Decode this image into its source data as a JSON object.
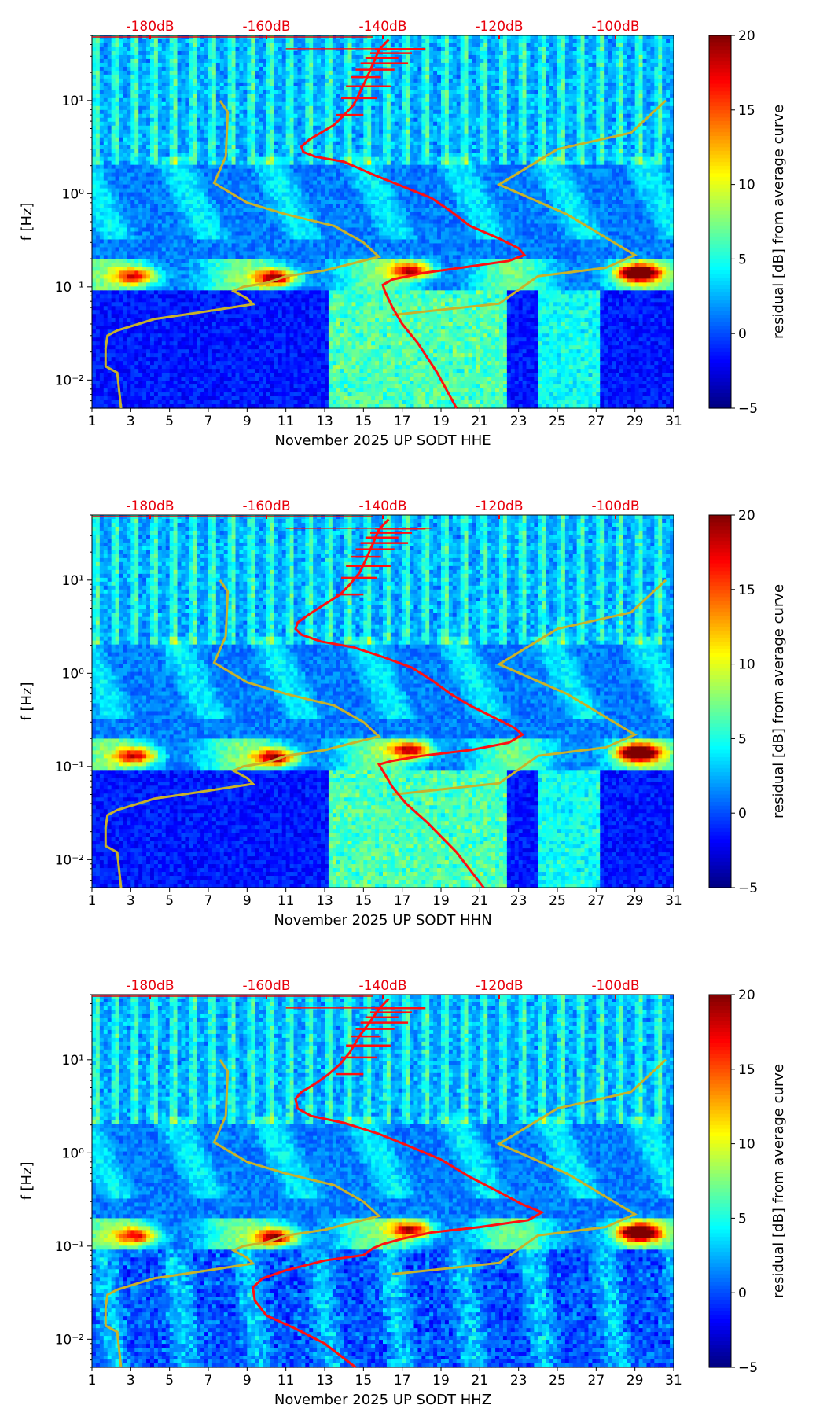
{
  "colors": {
    "db_axis": "#e8000b",
    "average_curve": "#ff1010",
    "noise_model": "#c8b22a",
    "colormap": [
      "#00007f",
      "#0000ff",
      "#007fff",
      "#00ffff",
      "#7fff7f",
      "#ffff00",
      "#ff7f00",
      "#ff0000",
      "#7f0000"
    ]
  },
  "chart_data": [
    {
      "type": "heatmap",
      "title": "",
      "xlabel": "November 2025 UP SODT  HHE",
      "ylabel": "f [Hz]",
      "x_ticks": [
        "1",
        "3",
        "5",
        "7",
        "9",
        "11",
        "13",
        "15",
        "17",
        "19",
        "21",
        "23",
        "25",
        "27",
        "29",
        "31"
      ],
      "xlim": [
        1,
        31
      ],
      "ylim": [
        0.005,
        50
      ],
      "y_scale": "log",
      "y_ticks": [
        "10⁻²",
        "10⁻¹",
        "10⁰",
        "10¹"
      ],
      "db_axis_ticks": [
        "-180dB",
        "-160dB",
        "-140dB",
        "-120dB",
        "-100dB"
      ],
      "colorbar": {
        "label": "residual [dB] from average curve",
        "range": [
          -5,
          20
        ],
        "ticks": [
          "20",
          "15",
          "10",
          "5",
          "0",
          "−5"
        ]
      },
      "average_psd_curve": [
        [
          16.3,
          45
        ],
        [
          15.8,
          35
        ],
        [
          15.5,
          25
        ],
        [
          15.2,
          18
        ],
        [
          14.8,
          12
        ],
        [
          14.5,
          9
        ],
        [
          14,
          7
        ],
        [
          13.5,
          5.5
        ],
        [
          12.8,
          4.5
        ],
        [
          12.2,
          3.8
        ],
        [
          11.8,
          3.2
        ],
        [
          11.9,
          2.8
        ],
        [
          12.5,
          2.5
        ],
        [
          14,
          2.2
        ],
        [
          15.5,
          1.6
        ],
        [
          17,
          1.2
        ],
        [
          18.5,
          0.9
        ],
        [
          19.5,
          0.65
        ],
        [
          20.5,
          0.45
        ],
        [
          22,
          0.33
        ],
        [
          23,
          0.26
        ],
        [
          23.3,
          0.22
        ],
        [
          22.5,
          0.19
        ],
        [
          20,
          0.16
        ],
        [
          18,
          0.14
        ],
        [
          16.5,
          0.12
        ],
        [
          16,
          0.105
        ],
        [
          16.1,
          0.09
        ],
        [
          16.5,
          0.06
        ],
        [
          17,
          0.04
        ],
        [
          17.8,
          0.025
        ],
        [
          18.8,
          0.012
        ],
        [
          19.8,
          0.005
        ]
      ],
      "noise_model_curve": [
        [
          7.6,
          10
        ],
        [
          8,
          7.5
        ],
        [
          7.9,
          2.5
        ],
        [
          7.3,
          1.3
        ],
        [
          9,
          0.8
        ],
        [
          11,
          0.6
        ],
        [
          13.5,
          0.45
        ],
        [
          15,
          0.3
        ],
        [
          15.8,
          0.21
        ],
        [
          13,
          0.15
        ],
        [
          11,
          0.13
        ],
        [
          10,
          0.11
        ],
        [
          8.8,
          0.1
        ],
        [
          8.3,
          0.09
        ],
        [
          9,
          0.075
        ],
        [
          9.3,
          0.065
        ],
        [
          7,
          0.055
        ],
        [
          4.2,
          0.045
        ],
        [
          2.3,
          0.034
        ],
        [
          1.8,
          0.03
        ],
        [
          1.7,
          0.022
        ],
        [
          1.7,
          0.014
        ],
        [
          2.3,
          0.012
        ],
        [
          2.5,
          0.005
        ]
      ],
      "noise_model_curve_high": [
        [
          16.5,
          0.05
        ],
        [
          22,
          0.066
        ],
        [
          24,
          0.13
        ],
        [
          27.5,
          0.16
        ],
        [
          29,
          0.22
        ],
        [
          25.5,
          0.6
        ],
        [
          22,
          1.25
        ],
        [
          25,
          3
        ],
        [
          28.8,
          4.5
        ],
        [
          30.6,
          10
        ]
      ],
      "hotspots": [
        {
          "x": 29.2,
          "f": 0.14,
          "level": 20
        },
        {
          "x": 10.5,
          "f": 0.125,
          "level": 16
        },
        {
          "x": 17.5,
          "f": 0.15,
          "level": 15
        },
        {
          "x": 3.3,
          "f": 0.13,
          "level": 13
        }
      ]
    },
    {
      "type": "heatmap",
      "title": "",
      "xlabel": "November 2025 UP SODT  HHN",
      "ylabel": "f [Hz]",
      "x_ticks": [
        "1",
        "3",
        "5",
        "7",
        "9",
        "11",
        "13",
        "15",
        "17",
        "19",
        "21",
        "23",
        "25",
        "27",
        "29",
        "31"
      ],
      "xlim": [
        1,
        31
      ],
      "ylim": [
        0.005,
        50
      ],
      "y_scale": "log",
      "y_ticks": [
        "10⁻²",
        "10⁻¹",
        "10⁰",
        "10¹"
      ],
      "db_axis_ticks": [
        "-180dB",
        "-160dB",
        "-140dB",
        "-120dB",
        "-100dB"
      ],
      "colorbar": {
        "label": "residual [dB] from average curve",
        "range": [
          -5,
          20
        ],
        "ticks": [
          "20",
          "15",
          "10",
          "5",
          "0",
          "−5"
        ]
      },
      "average_psd_curve": [
        [
          16.3,
          45
        ],
        [
          15.8,
          35
        ],
        [
          15.5,
          25
        ],
        [
          15.2,
          18
        ],
        [
          14.8,
          12
        ],
        [
          14.3,
          9
        ],
        [
          13.8,
          7
        ],
        [
          13,
          5.5
        ],
        [
          12.2,
          4.3
        ],
        [
          11.6,
          3.5
        ],
        [
          11.5,
          3
        ],
        [
          11.8,
          2.6
        ],
        [
          12.8,
          2.2
        ],
        [
          14.5,
          1.9
        ],
        [
          16,
          1.5
        ],
        [
          17.5,
          1.15
        ],
        [
          18.5,
          0.85
        ],
        [
          19.5,
          0.6
        ],
        [
          20.5,
          0.45
        ],
        [
          21.8,
          0.33
        ],
        [
          22.8,
          0.26
        ],
        [
          23.2,
          0.22
        ],
        [
          22.5,
          0.18
        ],
        [
          20.5,
          0.15
        ],
        [
          18,
          0.13
        ],
        [
          16.5,
          0.115
        ],
        [
          15.8,
          0.105
        ],
        [
          16,
          0.09
        ],
        [
          16.5,
          0.06
        ],
        [
          17.2,
          0.04
        ],
        [
          18.3,
          0.025
        ],
        [
          19.8,
          0.012
        ],
        [
          21.2,
          0.005
        ]
      ],
      "noise_model_curve": [
        [
          7.6,
          10
        ],
        [
          8,
          7.5
        ],
        [
          7.9,
          2.5
        ],
        [
          7.3,
          1.3
        ],
        [
          9,
          0.8
        ],
        [
          11,
          0.6
        ],
        [
          13.5,
          0.45
        ],
        [
          15,
          0.3
        ],
        [
          15.8,
          0.21
        ],
        [
          13,
          0.15
        ],
        [
          11,
          0.13
        ],
        [
          10,
          0.11
        ],
        [
          8.8,
          0.1
        ],
        [
          8.3,
          0.09
        ],
        [
          9,
          0.075
        ],
        [
          9.3,
          0.065
        ],
        [
          7,
          0.055
        ],
        [
          4.2,
          0.045
        ],
        [
          2.3,
          0.034
        ],
        [
          1.8,
          0.03
        ],
        [
          1.7,
          0.022
        ],
        [
          1.7,
          0.014
        ],
        [
          2.3,
          0.012
        ],
        [
          2.5,
          0.005
        ]
      ],
      "noise_model_curve_high": [
        [
          16.5,
          0.05
        ],
        [
          22,
          0.066
        ],
        [
          24,
          0.13
        ],
        [
          27.5,
          0.16
        ],
        [
          29,
          0.22
        ],
        [
          25.5,
          0.6
        ],
        [
          22,
          1.25
        ],
        [
          25,
          3
        ],
        [
          28.8,
          4.5
        ],
        [
          30.6,
          10
        ]
      ],
      "hotspots": [
        {
          "x": 29.2,
          "f": 0.14,
          "level": 20
        },
        {
          "x": 10.5,
          "f": 0.125,
          "level": 16
        },
        {
          "x": 17.5,
          "f": 0.15,
          "level": 15
        },
        {
          "x": 3.3,
          "f": 0.13,
          "level": 13
        }
      ]
    },
    {
      "type": "heatmap",
      "title": "",
      "xlabel": "November 2025 UP SODT  HHZ",
      "ylabel": "f [Hz]",
      "x_ticks": [
        "1",
        "3",
        "5",
        "7",
        "9",
        "11",
        "13",
        "15",
        "17",
        "19",
        "21",
        "23",
        "25",
        "27",
        "29",
        "31"
      ],
      "xlim": [
        1,
        31
      ],
      "ylim": [
        0.005,
        50
      ],
      "y_scale": "log",
      "y_ticks": [
        "10⁻²",
        "10⁻¹",
        "10⁰",
        "10¹"
      ],
      "db_axis_ticks": [
        "-180dB",
        "-160dB",
        "-140dB",
        "-120dB",
        "-100dB"
      ],
      "colorbar": {
        "label": "residual [dB] from average curve",
        "range": [
          -5,
          20
        ],
        "ticks": [
          "20",
          "15",
          "10",
          "5",
          "0",
          "−5"
        ]
      },
      "average_psd_curve": [
        [
          16.3,
          45
        ],
        [
          15.8,
          35
        ],
        [
          15.3,
          25
        ],
        [
          14.8,
          18
        ],
        [
          14.3,
          12
        ],
        [
          13.8,
          9
        ],
        [
          13.2,
          7
        ],
        [
          12.5,
          5.5
        ],
        [
          11.8,
          4.5
        ],
        [
          11.5,
          3.8
        ],
        [
          11.6,
          3
        ],
        [
          12.3,
          2.5
        ],
        [
          14,
          2.1
        ],
        [
          15.8,
          1.6
        ],
        [
          17.5,
          1.15
        ],
        [
          19,
          0.85
        ],
        [
          20.5,
          0.55
        ],
        [
          22,
          0.38
        ],
        [
          23.2,
          0.28
        ],
        [
          24.2,
          0.23
        ],
        [
          23.5,
          0.19
        ],
        [
          21,
          0.16
        ],
        [
          18.5,
          0.14
        ],
        [
          17,
          0.12
        ],
        [
          16,
          0.105
        ],
        [
          15.5,
          0.095
        ],
        [
          15,
          0.08
        ],
        [
          13,
          0.07
        ],
        [
          11,
          0.055
        ],
        [
          9.8,
          0.045
        ],
        [
          9.3,
          0.036
        ],
        [
          9.4,
          0.026
        ],
        [
          10,
          0.018
        ],
        [
          11.5,
          0.013
        ],
        [
          13,
          0.009
        ],
        [
          14.6,
          0.005
        ]
      ],
      "noise_model_curve": [
        [
          7.6,
          10
        ],
        [
          8,
          7.5
        ],
        [
          7.9,
          2.5
        ],
        [
          7.3,
          1.3
        ],
        [
          9,
          0.8
        ],
        [
          11,
          0.6
        ],
        [
          13.5,
          0.45
        ],
        [
          15,
          0.3
        ],
        [
          15.8,
          0.21
        ],
        [
          13,
          0.15
        ],
        [
          11,
          0.13
        ],
        [
          10,
          0.11
        ],
        [
          8.8,
          0.1
        ],
        [
          8.3,
          0.09
        ],
        [
          9,
          0.075
        ],
        [
          9.3,
          0.065
        ],
        [
          7,
          0.055
        ],
        [
          4.2,
          0.045
        ],
        [
          2.3,
          0.034
        ],
        [
          1.8,
          0.03
        ],
        [
          1.7,
          0.022
        ],
        [
          1.7,
          0.014
        ],
        [
          2.3,
          0.012
        ],
        [
          2.5,
          0.005
        ]
      ],
      "noise_model_curve_high": [
        [
          16.5,
          0.05
        ],
        [
          22,
          0.066
        ],
        [
          24,
          0.13
        ],
        [
          27.5,
          0.16
        ],
        [
          29,
          0.22
        ],
        [
          25.5,
          0.6
        ],
        [
          22,
          1.25
        ],
        [
          25,
          3
        ],
        [
          28.8,
          4.5
        ],
        [
          30.6,
          10
        ]
      ],
      "hotspots": [
        {
          "x": 29.2,
          "f": 0.14,
          "level": 20
        },
        {
          "x": 10.5,
          "f": 0.125,
          "level": 16
        },
        {
          "x": 17.5,
          "f": 0.15,
          "level": 15
        },
        {
          "x": 3.3,
          "f": 0.13,
          "level": 13
        }
      ]
    }
  ]
}
